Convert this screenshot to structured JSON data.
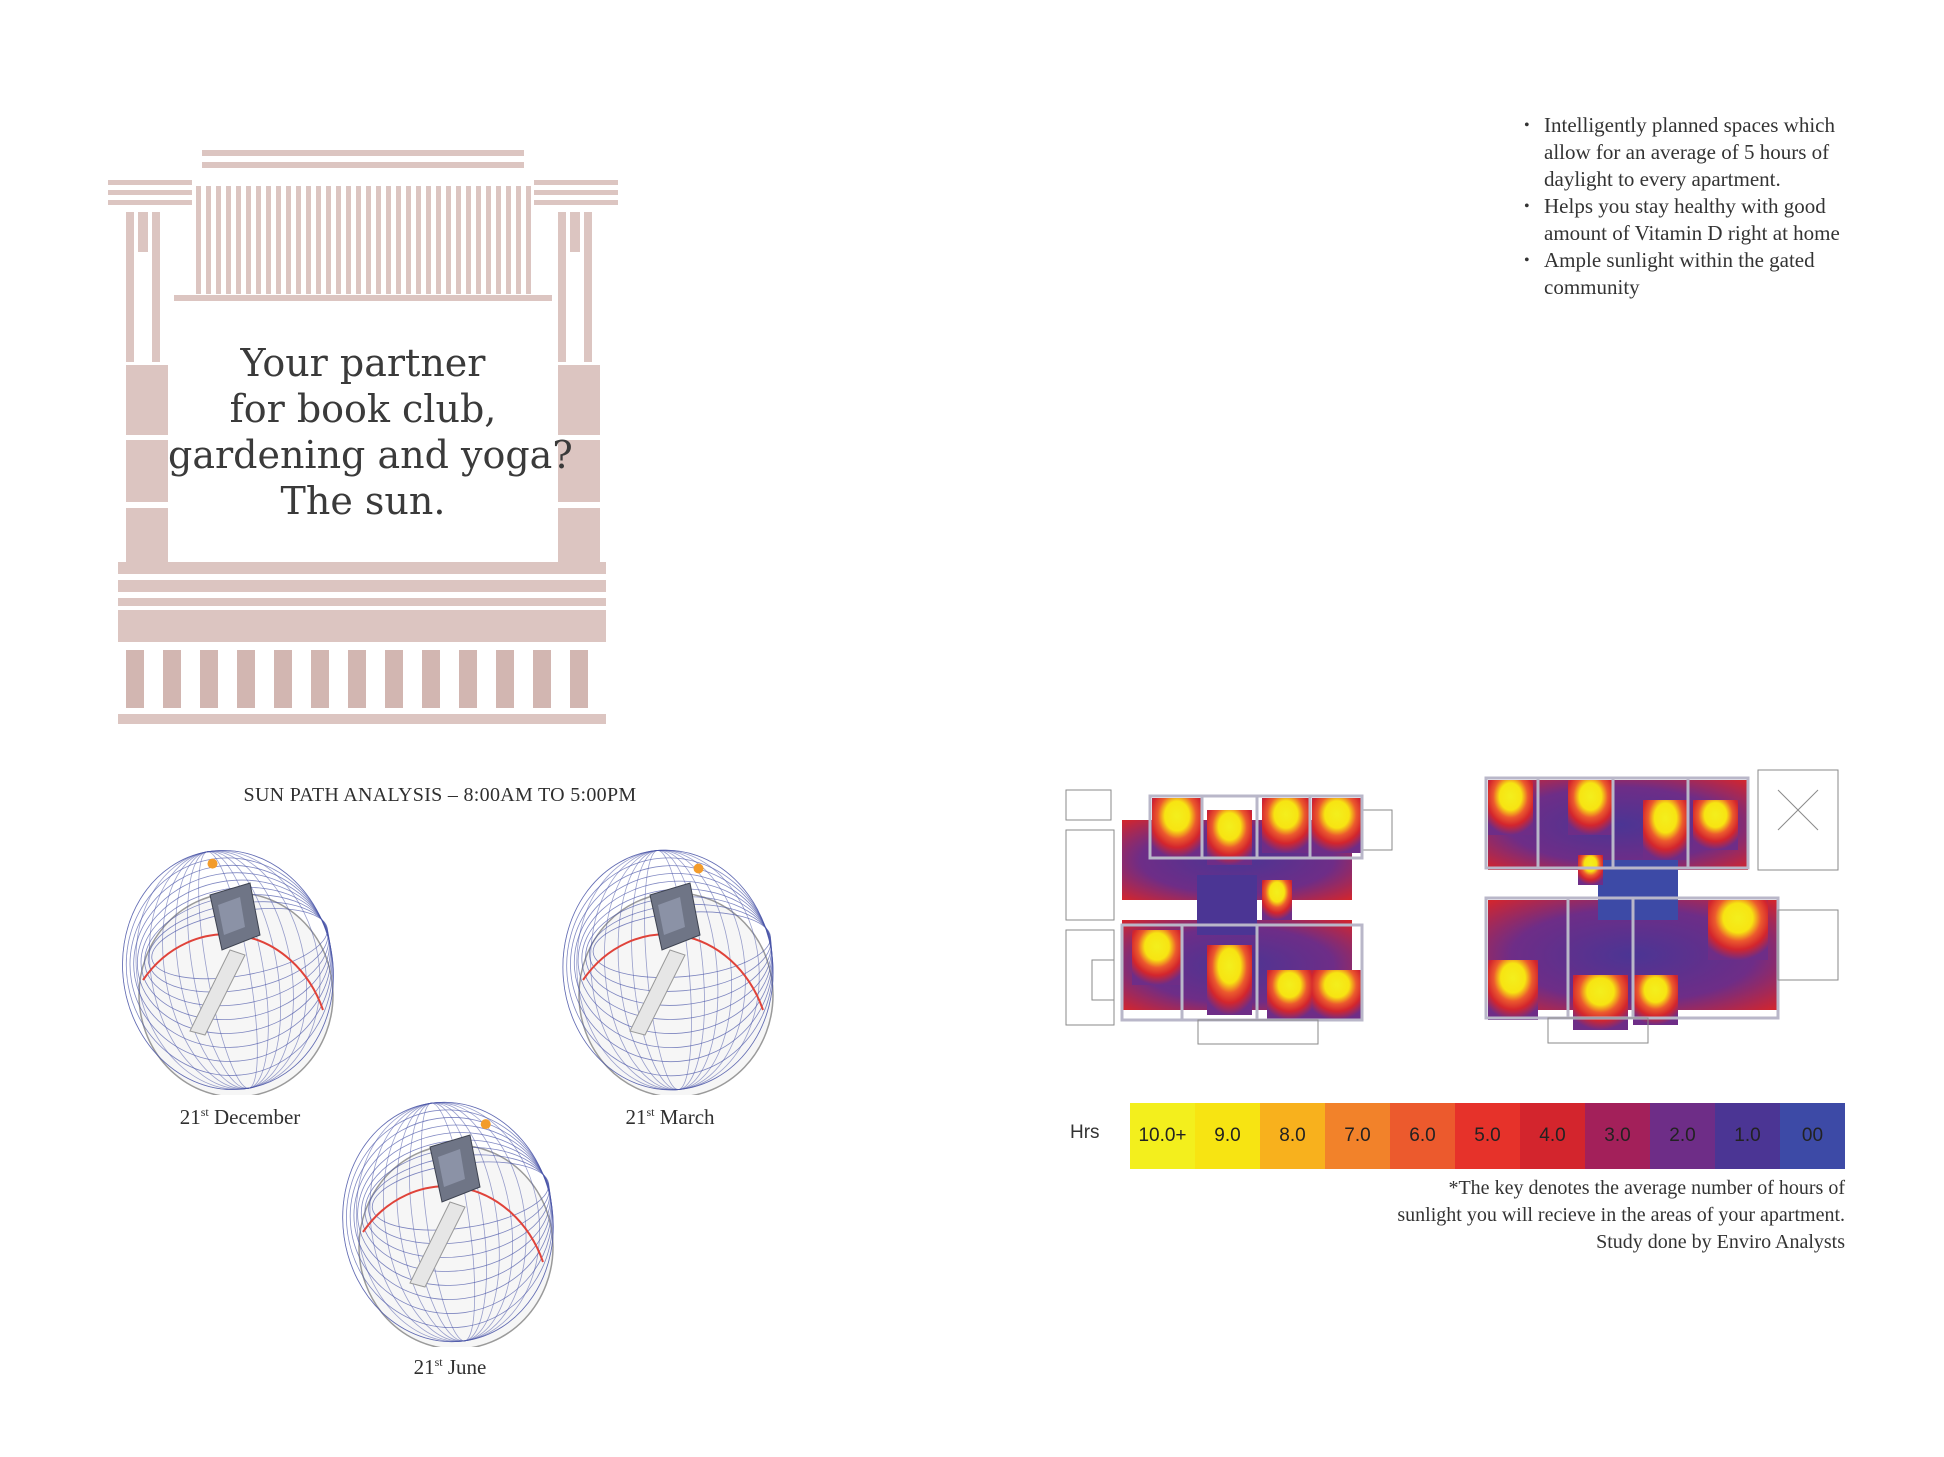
{
  "headline": {
    "lines": [
      "Your partner",
      "for book club,",
      "gardening and yoga?",
      "The sun."
    ]
  },
  "bullets": [
    "Intelligently planned spaces which allow for an average of 5 hours of daylight to every apartment.",
    "Helps you stay healthy with good amount of Vitamin D right at home",
    "Ample sunlight within the gated community"
  ],
  "sun_path": {
    "title": "SUN PATH ANALYSIS – 8:00AM TO 5:00PM",
    "diagrams": [
      {
        "day": "21",
        "suffix": "st",
        "month": "December"
      },
      {
        "day": "21",
        "suffix": "st",
        "month": "March"
      },
      {
        "day": "21",
        "suffix": "st",
        "month": "June"
      }
    ]
  },
  "legend": {
    "unit": "Hrs",
    "items": [
      {
        "label": "10.0+",
        "color": "#f3ef1d"
      },
      {
        "label": "9.0",
        "color": "#f7e412"
      },
      {
        "label": "8.0",
        "color": "#f8b11d"
      },
      {
        "label": "7.0",
        "color": "#f2822a"
      },
      {
        "label": "6.0",
        "color": "#ec5a2d"
      },
      {
        "label": "5.0",
        "color": "#e6322a"
      },
      {
        "label": "4.0",
        "color": "#d3252d"
      },
      {
        "label": "3.0",
        "color": "#a3205a"
      },
      {
        "label": "2.0",
        "color": "#6e2d87"
      },
      {
        "label": "1.0",
        "color": "#4b3594"
      },
      {
        "label": "00",
        "color": "#3d4aa6"
      }
    ],
    "note_lines": [
      "*The key denotes the average number of hours of",
      "sunlight you will recieve in the areas of your apartment.",
      "Study done by Enviro Analysts"
    ]
  },
  "colors": {
    "facade": "#dcc5c1",
    "sun_marker": "#f39c2b",
    "dome_lines": "#4a55a8"
  }
}
